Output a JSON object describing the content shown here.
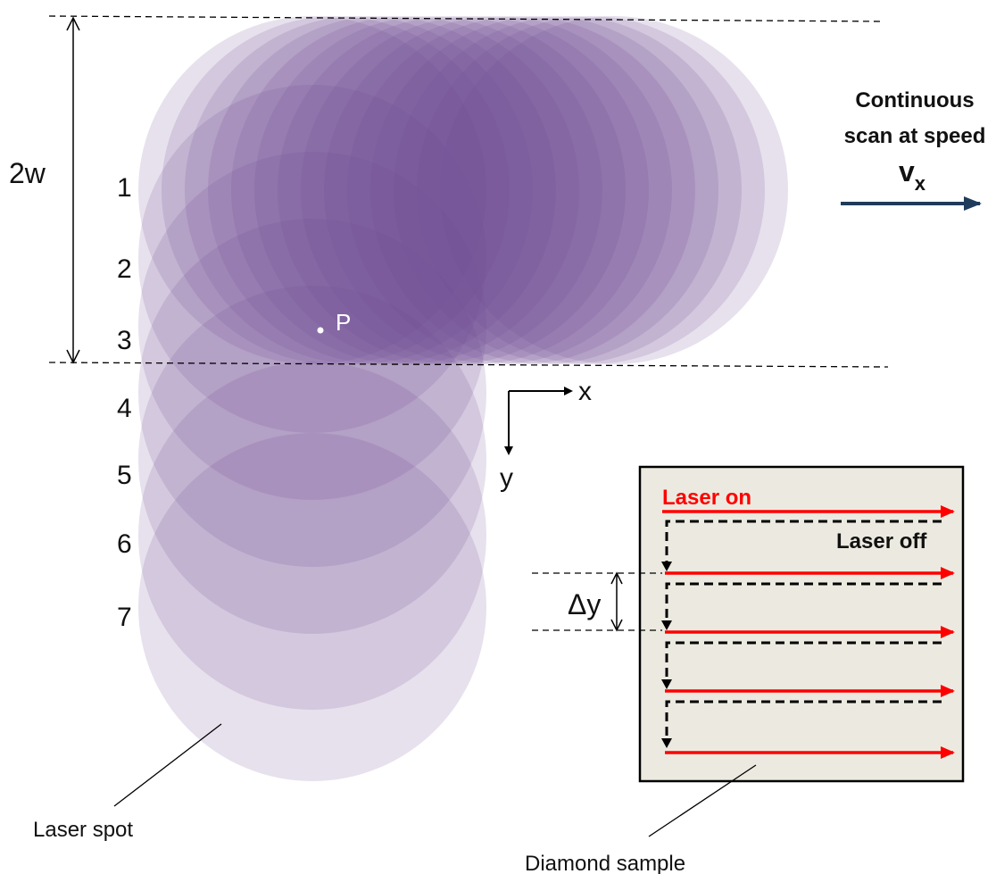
{
  "labels": {
    "height_label": "2w",
    "rows": [
      "1",
      "2",
      "3",
      "4",
      "5",
      "6",
      "7"
    ],
    "point": "P",
    "axis_x": "x",
    "axis_y": "y",
    "scan_line1": "Continuous",
    "scan_line2": "scan at speed",
    "velocity_main": "v",
    "velocity_sub": "x",
    "laser_on": "Laser on",
    "laser_off": "Laser off",
    "delta_y": "Δy",
    "laser_spot": "Laser spot",
    "diamond_sample": "Diamond sample"
  },
  "colors": {
    "spot": "#6f4d96",
    "spot_light": "#b7a6cc",
    "arrow_blue": "#1f3b5c",
    "laser_red": "#ff0000",
    "sample_bg": "#eceae0"
  }
}
